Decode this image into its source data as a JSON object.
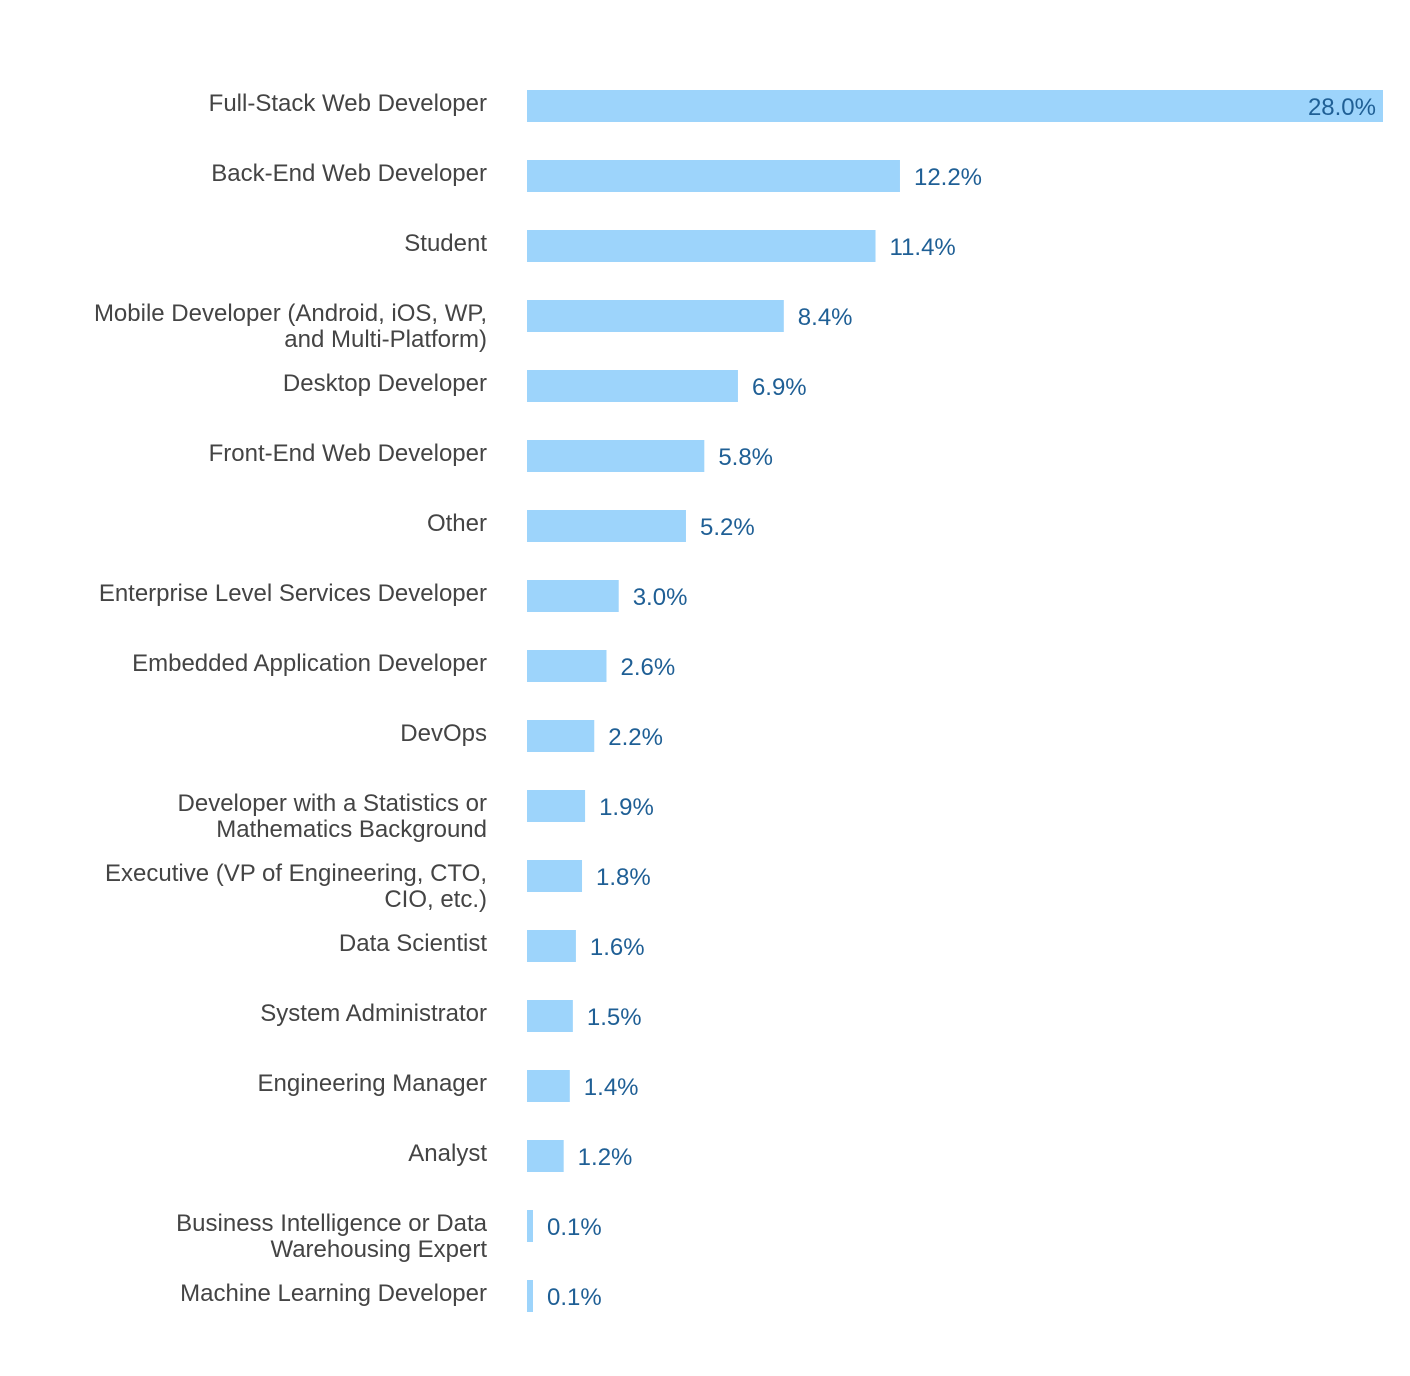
{
  "chart_data": {
    "type": "bar",
    "orientation": "horizontal",
    "title": "",
    "xlabel": "",
    "ylabel": "",
    "grid": false,
    "legend": "none",
    "xlim": [
      0,
      28.0
    ],
    "value_suffix": "%",
    "categories": [
      "Full-Stack Web Developer",
      "Back-End Web Developer",
      "Student",
      "Mobile Developer (Android, iOS, WP, and Multi-Platform)",
      "Desktop Developer",
      "Front-End Web Developer",
      "Other",
      "Enterprise Level Services Developer",
      "Embedded Application Developer",
      "DevOps",
      "Developer with a Statistics or Mathematics Background",
      "Executive (VP of Engineering, CTO, CIO, etc.)",
      "Data Scientist",
      "System Administrator",
      "Engineering Manager",
      "Analyst",
      "Business Intelligence or Data Warehousing Expert",
      "Machine Learning Developer"
    ],
    "category_lines": [
      [
        "Full-Stack Web Developer"
      ],
      [
        "Back-End Web Developer"
      ],
      [
        "Student"
      ],
      [
        "Mobile Developer (Android, iOS, WP,",
        "and Multi-Platform)"
      ],
      [
        "Desktop Developer"
      ],
      [
        "Front-End Web Developer"
      ],
      [
        "Other"
      ],
      [
        "Enterprise Level Services Developer"
      ],
      [
        "Embedded Application Developer"
      ],
      [
        "DevOps"
      ],
      [
        "Developer with a Statistics or",
        "Mathematics Background"
      ],
      [
        "Executive (VP of Engineering, CTO,",
        "CIO, etc.)"
      ],
      [
        "Data Scientist"
      ],
      [
        "System Administrator"
      ],
      [
        "Engineering Manager"
      ],
      [
        "Analyst"
      ],
      [
        "Business Intelligence or Data",
        "Warehousing Expert"
      ],
      [
        "Machine Learning Developer"
      ]
    ],
    "values": [
      28.0,
      12.2,
      11.4,
      8.4,
      6.9,
      5.8,
      5.2,
      3.0,
      2.6,
      2.2,
      1.9,
      1.8,
      1.6,
      1.5,
      1.4,
      1.2,
      0.1,
      0.1
    ],
    "value_labels": [
      "28.0%",
      "12.2%",
      "11.4%",
      "8.4%",
      "6.9%",
      "5.8%",
      "5.2%",
      "3.0%",
      "2.6%",
      "2.2%",
      "1.9%",
      "1.8%",
      "1.6%",
      "1.5%",
      "1.4%",
      "1.2%",
      "0.1%",
      "0.1%"
    ],
    "colors": {
      "bar": "#9dd4fb",
      "value_label": "#1f5f95",
      "category_label": "#444444"
    }
  }
}
